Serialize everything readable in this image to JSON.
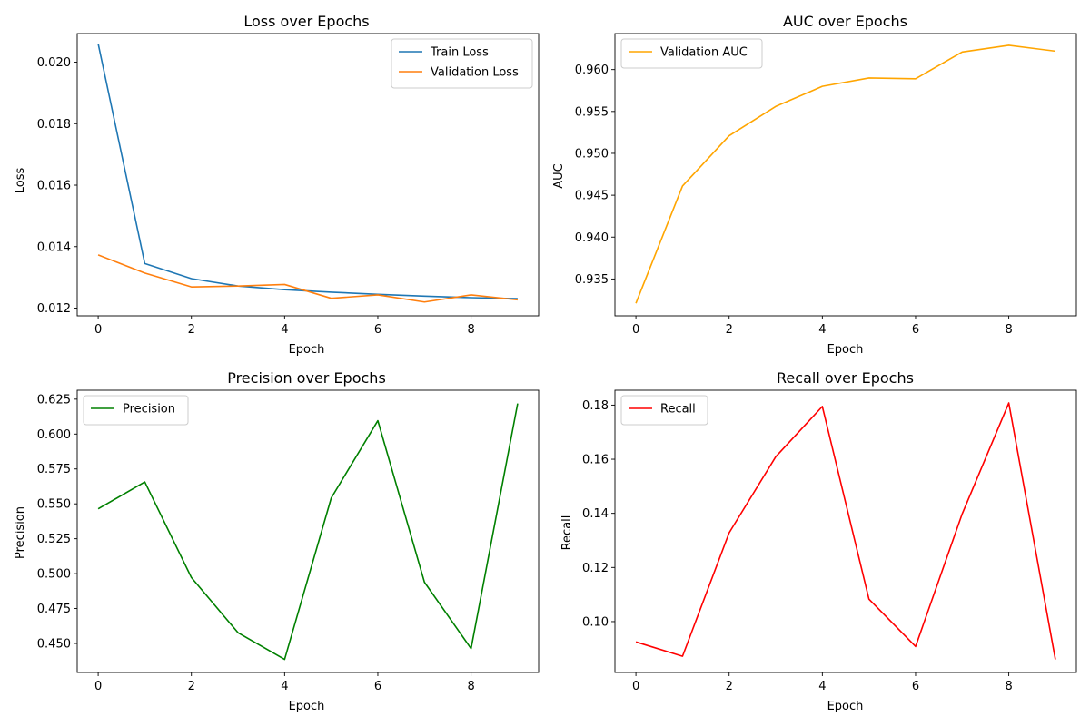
{
  "chart_data": [
    {
      "type": "line",
      "title": "Loss over Epochs",
      "xlabel": "Epoch",
      "ylabel": "Loss",
      "xlim": [
        -0.45,
        9.45
      ],
      "ylim": [
        0.01175,
        0.02093
      ],
      "xticks": [
        0,
        2,
        4,
        6,
        8
      ],
      "xtick_labels": [
        "0",
        "2",
        "4",
        "6",
        "8"
      ],
      "yticks": [
        0.012,
        0.014,
        0.016,
        0.018,
        0.02
      ],
      "ytick_labels": [
        "0.012",
        "0.014",
        "0.016",
        "0.018",
        "0.020"
      ],
      "legend": "top-right",
      "grid": false,
      "x": [
        0,
        1,
        2,
        3,
        4,
        5,
        6,
        7,
        8,
        9
      ],
      "series": [
        {
          "name": "Train Loss",
          "color": "#1f77b4",
          "values": [
            0.0206,
            0.01345,
            0.01296,
            0.01272,
            0.0126,
            0.01252,
            0.01245,
            0.01239,
            0.01234,
            0.01231
          ]
        },
        {
          "name": "Validation Loss",
          "color": "#ff7f0e",
          "values": [
            0.01373,
            0.01314,
            0.01269,
            0.01272,
            0.01277,
            0.01232,
            0.01243,
            0.0122,
            0.01243,
            0.01227
          ]
        }
      ]
    },
    {
      "type": "line",
      "title": "AUC over Epochs",
      "xlabel": "Epoch",
      "ylabel": "AUC",
      "xlim": [
        -0.45,
        9.45
      ],
      "ylim": [
        0.9306,
        0.9643
      ],
      "xticks": [
        0,
        2,
        4,
        6,
        8
      ],
      "xtick_labels": [
        "0",
        "2",
        "4",
        "6",
        "8"
      ],
      "yticks": [
        0.935,
        0.94,
        0.945,
        0.95,
        0.955,
        0.96
      ],
      "ytick_labels": [
        "0.935",
        "0.940",
        "0.945",
        "0.950",
        "0.955",
        "0.960"
      ],
      "legend": "top-left",
      "grid": false,
      "x": [
        0,
        1,
        2,
        3,
        4,
        5,
        6,
        7,
        8,
        9
      ],
      "series": [
        {
          "name": "Validation AUC",
          "color": "#ffa500",
          "values": [
            0.9321,
            0.9461,
            0.9521,
            0.9556,
            0.958,
            0.959,
            0.9589,
            0.9621,
            0.9629,
            0.9622
          ]
        }
      ]
    },
    {
      "type": "line",
      "title": "Precision over Epochs",
      "xlabel": "Epoch",
      "ylabel": "Precision",
      "xlim": [
        -0.45,
        9.45
      ],
      "ylim": [
        0.4292,
        0.6314
      ],
      "xticks": [
        0,
        2,
        4,
        6,
        8
      ],
      "xtick_labels": [
        "0",
        "2",
        "4",
        "6",
        "8"
      ],
      "yticks": [
        0.45,
        0.475,
        0.5,
        0.525,
        0.55,
        0.575,
        0.6,
        0.625
      ],
      "ytick_labels": [
        "0.450",
        "0.475",
        "0.500",
        "0.525",
        "0.550",
        "0.575",
        "0.600",
        "0.625"
      ],
      "legend": "top-left",
      "grid": false,
      "x": [
        0,
        1,
        2,
        3,
        4,
        5,
        6,
        7,
        8,
        9
      ],
      "series": [
        {
          "name": "Precision",
          "color": "#008000",
          "values": [
            0.5464,
            0.5657,
            0.4972,
            0.4577,
            0.4386,
            0.5542,
            0.6096,
            0.4939,
            0.4463,
            0.6219
          ]
        }
      ]
    },
    {
      "type": "line",
      "title": "Recall over Epochs",
      "xlabel": "Epoch",
      "ylabel": "Recall",
      "xlim": [
        -0.45,
        9.45
      ],
      "ylim": [
        0.0812,
        0.1855
      ],
      "xticks": [
        0,
        2,
        4,
        6,
        8
      ],
      "xtick_labels": [
        "0",
        "2",
        "4",
        "6",
        "8"
      ],
      "yticks": [
        0.1,
        0.12,
        0.14,
        0.16,
        0.18
      ],
      "ytick_labels": [
        "0.10",
        "0.12",
        "0.14",
        "0.16",
        "0.18"
      ],
      "legend": "top-left",
      "grid": false,
      "x": [
        0,
        1,
        2,
        3,
        4,
        5,
        6,
        7,
        8,
        9
      ],
      "series": [
        {
          "name": "Recall",
          "color": "#ff0000",
          "values": [
            0.0925,
            0.0872,
            0.1328,
            0.1609,
            0.1795,
            0.1083,
            0.0908,
            0.1398,
            0.1808,
            0.086
          ]
        }
      ]
    }
  ]
}
